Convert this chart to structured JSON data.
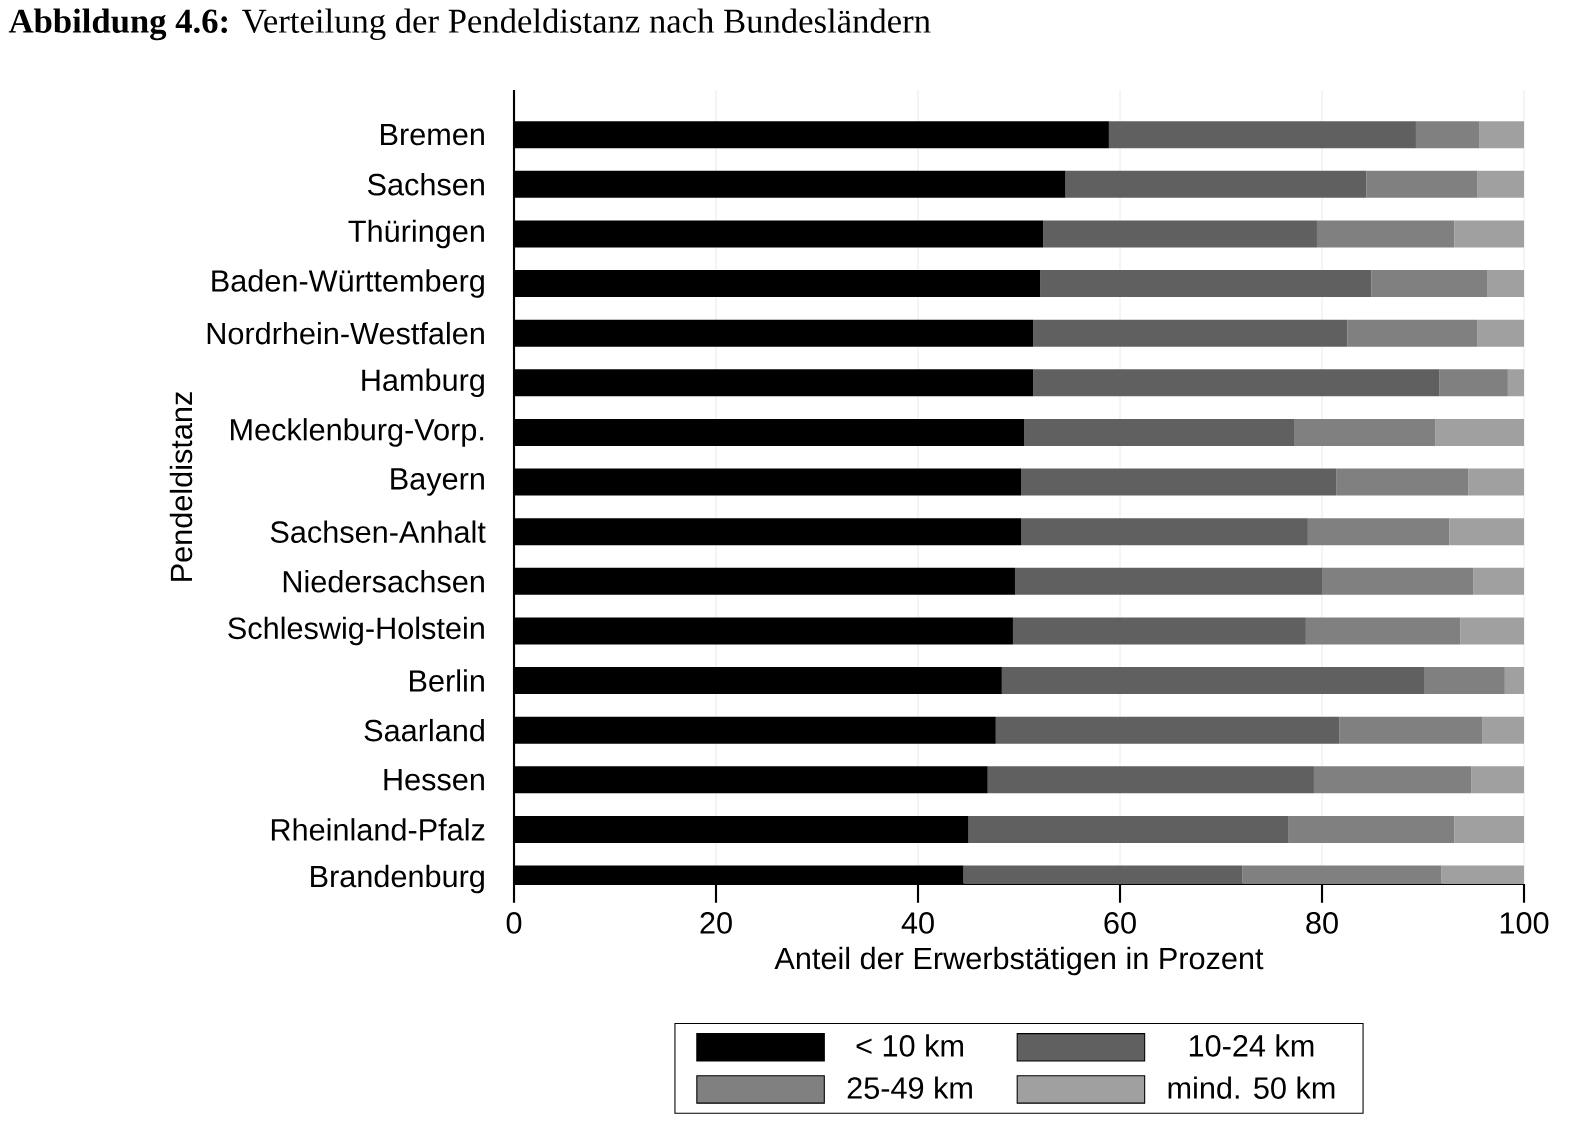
{
  "chart_data": {
    "type": "bar",
    "orientation": "horizontal",
    "stacked": true,
    "title": "**Abbildung 4.6:** Verteilung der Pendeldistanz nach Bundesländern",
    "xlabel": "Anteil der Erwerbstätigen in Prozent",
    "ylabel": "Pendeldistanz",
    "categories": [
      "Bremen",
      "Sachsen",
      "Thüringen",
      "Baden-Württemberg",
      "Nordrhein-Westfalen",
      "Hamburg",
      "Mecklenburg-Vorp.",
      "Bayern",
      "Sachsen-Anhalt",
      "Niedersachsen",
      "Schleswig-Holstein",
      "Berlin",
      "Saarland",
      "Hessen",
      "Rheinland-Pfalz",
      "Brandenburg"
    ],
    "series": [
      {
        "name": "< 10 km",
        "color": "#000000",
        "values": [
          58.9,
          54.6,
          52.4,
          52.1,
          51.4,
          51.4,
          50.5,
          50.2,
          50.2,
          49.6,
          49.4,
          48.3,
          47.7,
          46.9,
          45.0,
          44.5
        ]
      },
      {
        "name": "10-24 km",
        "color": "#606060",
        "values": [
          30.4,
          29.8,
          27.1,
          32.8,
          31.1,
          40.2,
          26.8,
          31.2,
          28.4,
          30.4,
          29.0,
          41.8,
          34.0,
          32.3,
          31.7,
          27.6
        ]
      },
      {
        "name": "25-49 km",
        "color": "#808080",
        "values": [
          6.3,
          11.0,
          13.6,
          11.5,
          12.9,
          6.8,
          13.9,
          13.1,
          14.0,
          15.0,
          15.3,
          8.0,
          14.2,
          15.6,
          16.4,
          19.7
        ]
      },
      {
        "name": "mind. 50 km",
        "color": "#a0a0a0",
        "values": [
          4.4,
          4.6,
          6.9,
          3.6,
          4.6,
          1.6,
          8.8,
          5.5,
          7.4,
          5.0,
          6.3,
          1.9,
          4.1,
          5.2,
          6.9,
          8.2
        ]
      }
    ],
    "xlim": [
      0,
      100
    ],
    "xticks": [
      0,
      20,
      40,
      60,
      80,
      100
    ],
    "grid": "x",
    "legend": "bottom"
  }
}
